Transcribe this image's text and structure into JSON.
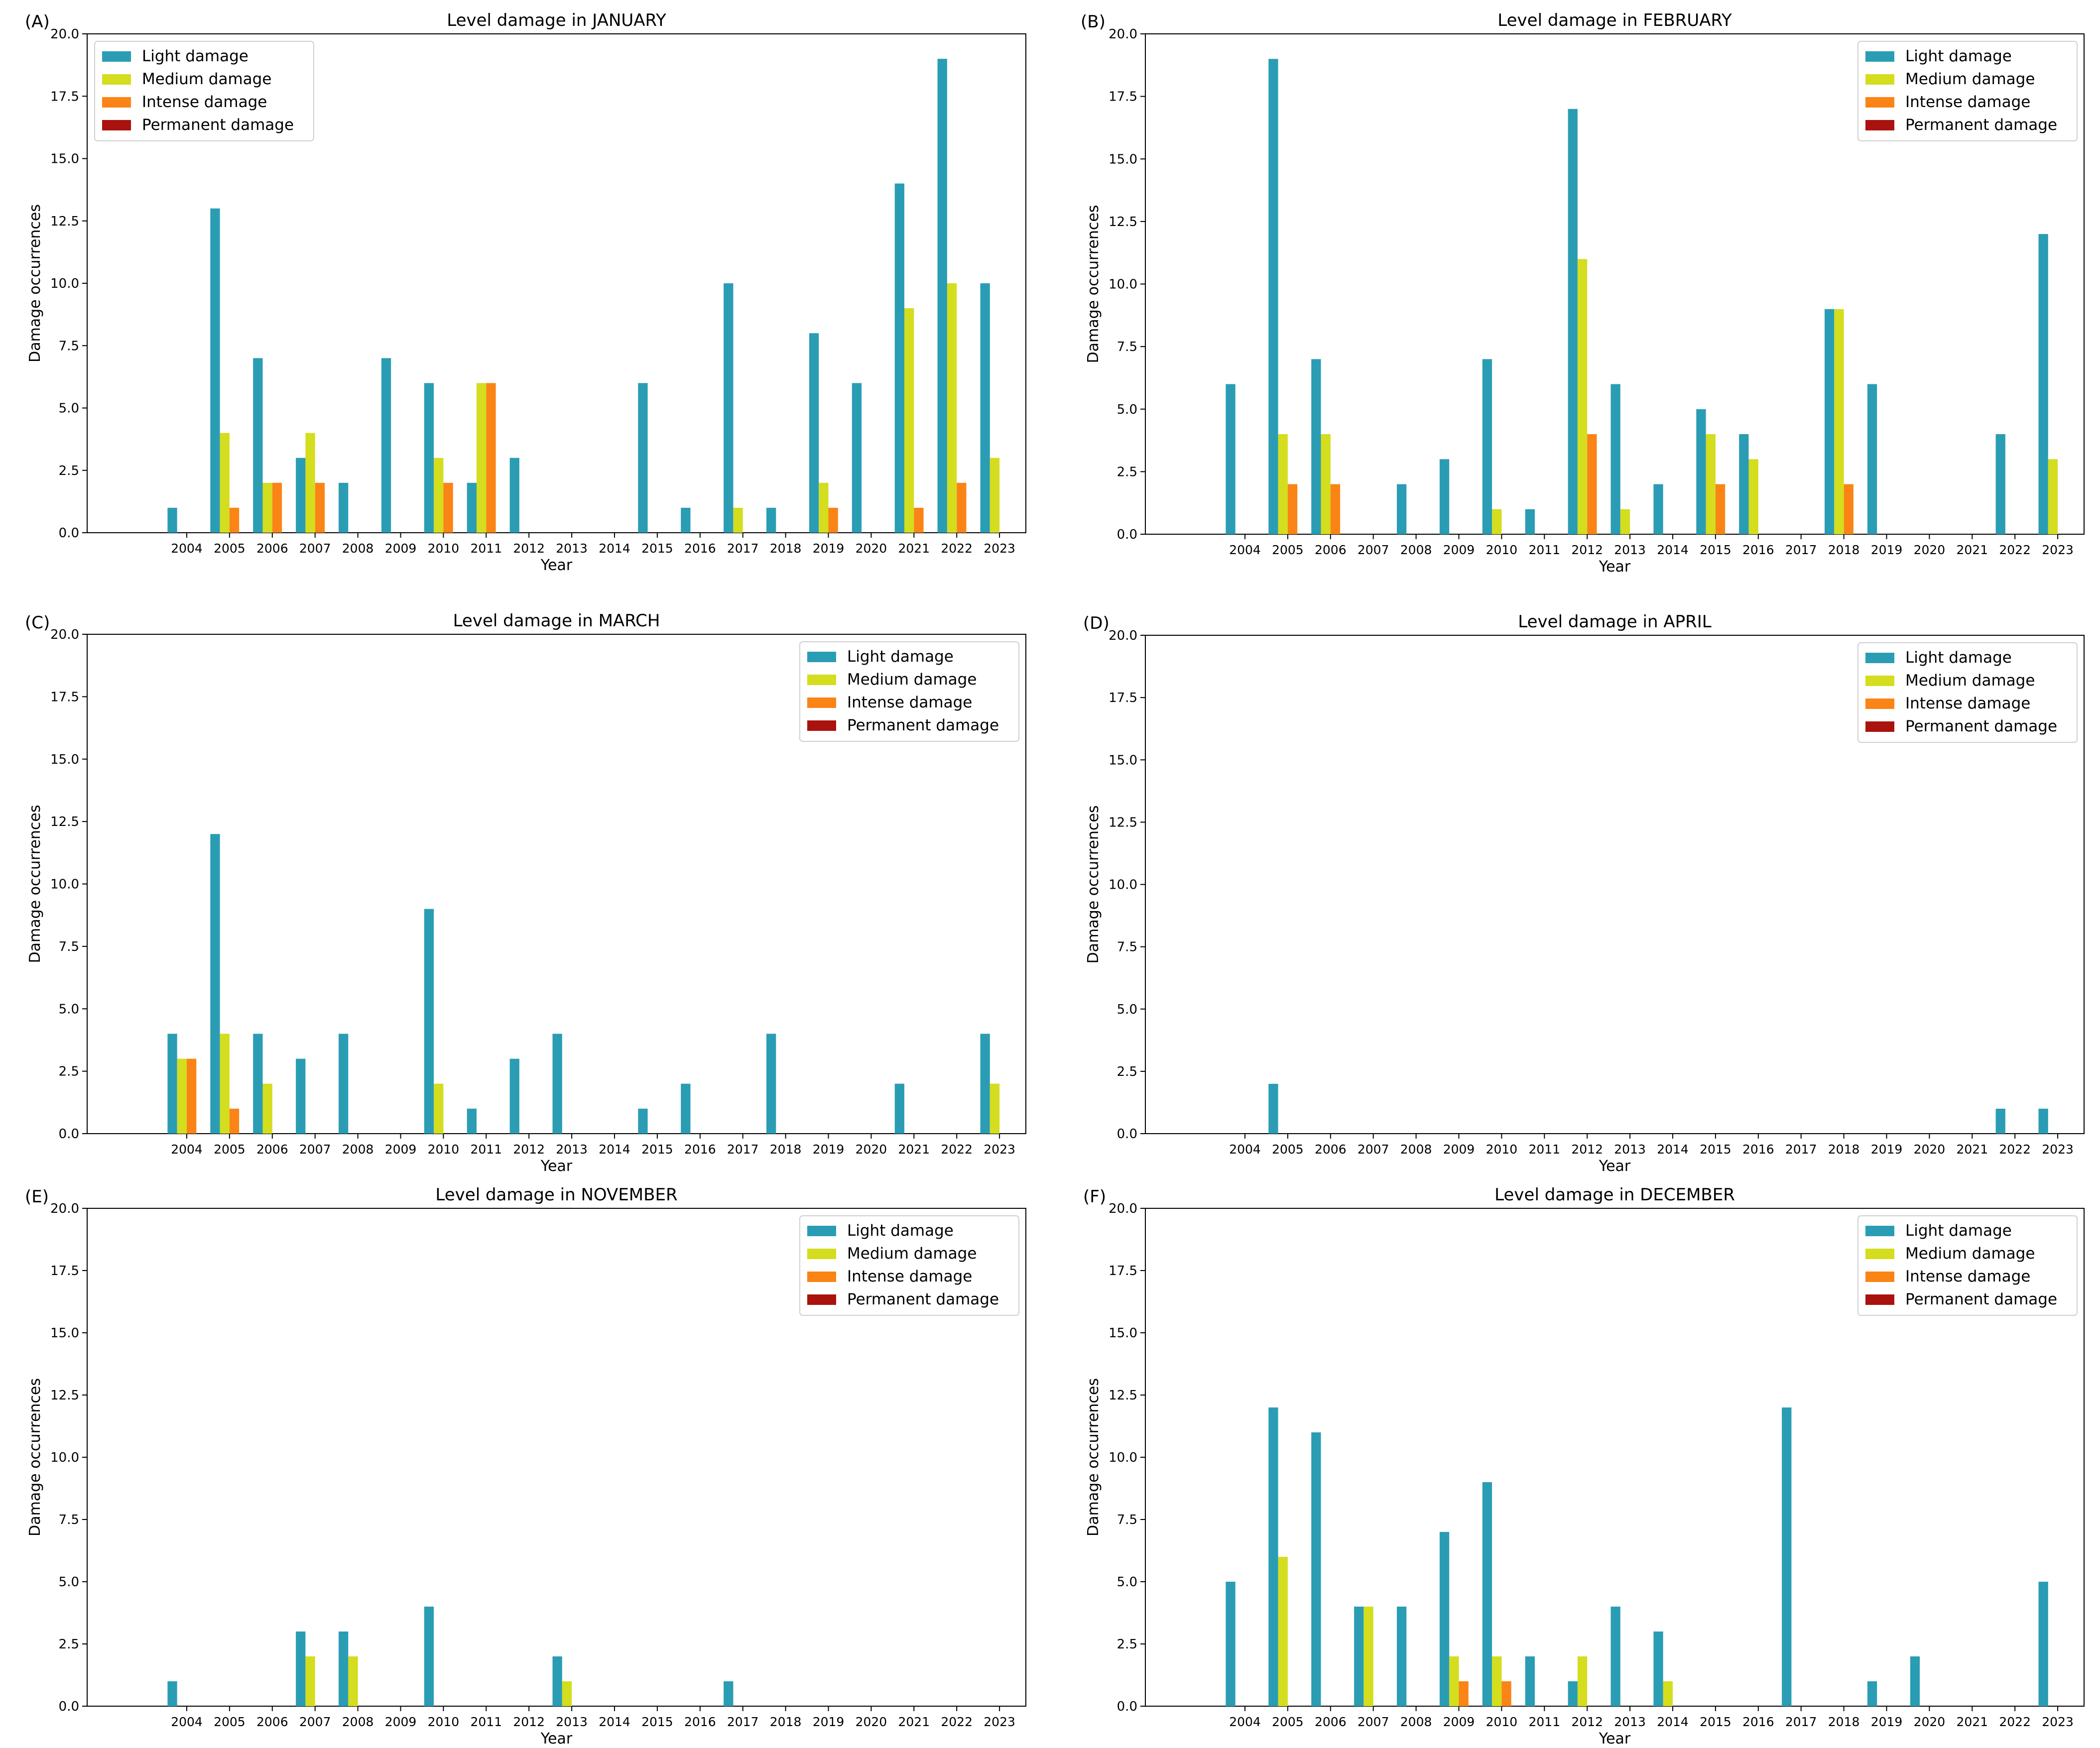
{
  "figure": {
    "years": [
      "2004",
      "2005",
      "2006",
      "2007",
      "2008",
      "2009",
      "2010",
      "2011",
      "2012",
      "2013",
      "2014",
      "2015",
      "2016",
      "2017",
      "2018",
      "2019",
      "2020",
      "2021",
      "2022",
      "2023"
    ],
    "legend_labels": [
      "Light damage",
      "Medium damage",
      "Intense damage",
      "Permanent damage"
    ],
    "colors": {
      "light": "#2a9db4",
      "medium": "#d4dd1e",
      "intense": "#fa8416",
      "permanent": "#aa120d"
    }
  },
  "chart_data": [
    {
      "type": "bar",
      "panel_label": "(A)",
      "title": "Level damage in JANUARY",
      "xlabel": "Year",
      "ylabel": "Damage occurrences",
      "ylim": [
        0,
        20
      ],
      "yticks": [
        "0.0",
        "2.5",
        "5.0",
        "7.5",
        "10.0",
        "12.5",
        "15.0",
        "17.5",
        "20.0"
      ],
      "legend_position": "top-left",
      "categories": [
        "2004",
        "2005",
        "2006",
        "2007",
        "2008",
        "2009",
        "2010",
        "2011",
        "2012",
        "2013",
        "2014",
        "2015",
        "2016",
        "2017",
        "2018",
        "2019",
        "2020",
        "2021",
        "2022",
        "2023"
      ],
      "series": [
        {
          "name": "Light damage",
          "values": [
            1,
            13,
            7,
            3,
            2,
            7,
            6,
            2,
            3,
            0,
            0,
            6,
            1,
            10,
            1,
            8,
            6,
            14,
            19,
            10
          ]
        },
        {
          "name": "Medium damage",
          "values": [
            0,
            4,
            2,
            4,
            0,
            0,
            3,
            6,
            0,
            0,
            0,
            0,
            0,
            1,
            0,
            2,
            0,
            9,
            10,
            3
          ]
        },
        {
          "name": "Intense damage",
          "values": [
            0,
            1,
            2,
            2,
            0,
            0,
            2,
            6,
            0,
            0,
            0,
            0,
            0,
            0,
            0,
            1,
            0,
            1,
            2,
            0
          ]
        },
        {
          "name": "Permanent damage",
          "values": [
            0,
            0,
            0,
            0,
            0,
            0,
            0,
            0,
            0,
            0,
            0,
            0,
            0,
            0,
            0,
            0,
            0,
            0,
            0,
            0
          ]
        }
      ]
    },
    {
      "type": "bar",
      "panel_label": "(B)",
      "title": "Level damage in FEBRUARY",
      "xlabel": "Year",
      "ylabel": "Damage occurrences",
      "ylim": [
        0,
        20
      ],
      "yticks": [
        "0.0",
        "2.5",
        "5.0",
        "7.5",
        "10.0",
        "12.5",
        "15.0",
        "17.5",
        "20.0"
      ],
      "legend_position": "top-right",
      "categories": [
        "2004",
        "2005",
        "2006",
        "2007",
        "2008",
        "2009",
        "2010",
        "2011",
        "2012",
        "2013",
        "2014",
        "2015",
        "2016",
        "2017",
        "2018",
        "2019",
        "2020",
        "2021",
        "2022",
        "2023"
      ],
      "series": [
        {
          "name": "Light damage",
          "values": [
            6,
            19,
            7,
            0,
            2,
            3,
            7,
            1,
            17,
            6,
            2,
            5,
            4,
            0,
            9,
            6,
            0,
            0,
            4,
            12
          ]
        },
        {
          "name": "Medium damage",
          "values": [
            0,
            4,
            4,
            0,
            0,
            0,
            1,
            0,
            11,
            1,
            0,
            4,
            3,
            0,
            9,
            0,
            0,
            0,
            0,
            3
          ]
        },
        {
          "name": "Intense damage",
          "values": [
            0,
            2,
            2,
            0,
            0,
            0,
            0,
            0,
            4,
            0,
            0,
            2,
            0,
            0,
            2,
            0,
            0,
            0,
            0,
            0
          ]
        },
        {
          "name": "Permanent damage",
          "values": [
            0,
            0,
            0,
            0,
            0,
            0,
            0,
            0,
            0,
            0,
            0,
            0,
            0,
            0,
            0,
            0,
            0,
            0,
            0,
            0
          ]
        }
      ]
    },
    {
      "type": "bar",
      "panel_label": "(C)",
      "title": "Level damage in MARCH",
      "xlabel": "Year",
      "ylabel": "Damage occurrences",
      "ylim": [
        0,
        20
      ],
      "yticks": [
        "0.0",
        "2.5",
        "5.0",
        "7.5",
        "10.0",
        "12.5",
        "15.0",
        "17.5",
        "20.0"
      ],
      "legend_position": "top-right",
      "categories": [
        "2004",
        "2005",
        "2006",
        "2007",
        "2008",
        "2009",
        "2010",
        "2011",
        "2012",
        "2013",
        "2014",
        "2015",
        "2016",
        "2017",
        "2018",
        "2019",
        "2020",
        "2021",
        "2022",
        "2023"
      ],
      "series": [
        {
          "name": "Light damage",
          "values": [
            4,
            12,
            4,
            3,
            4,
            0,
            9,
            1,
            3,
            4,
            0,
            1,
            2,
            0,
            4,
            0,
            0,
            2,
            0,
            4
          ]
        },
        {
          "name": "Medium damage",
          "values": [
            3,
            4,
            2,
            0,
            0,
            0,
            2,
            0,
            0,
            0,
            0,
            0,
            0,
            0,
            0,
            0,
            0,
            0,
            0,
            2
          ]
        },
        {
          "name": "Intense damage",
          "values": [
            3,
            1,
            0,
            0,
            0,
            0,
            0,
            0,
            0,
            0,
            0,
            0,
            0,
            0,
            0,
            0,
            0,
            0,
            0,
            0
          ]
        },
        {
          "name": "Permanent damage",
          "values": [
            0,
            0,
            0,
            0,
            0,
            0,
            0,
            0,
            0,
            0,
            0,
            0,
            0,
            0,
            0,
            0,
            0,
            0,
            0,
            0
          ]
        }
      ]
    },
    {
      "type": "bar",
      "panel_label": "(D)",
      "title": "Level damage in APRIL",
      "xlabel": "Year",
      "ylabel": "Damage occurrences",
      "ylim": [
        0,
        20
      ],
      "yticks": [
        "0.0",
        "2.5",
        "5.0",
        "7.5",
        "10.0",
        "12.5",
        "15.0",
        "17.5",
        "20.0"
      ],
      "legend_position": "top-right",
      "categories": [
        "2004",
        "2005",
        "2006",
        "2007",
        "2008",
        "2009",
        "2010",
        "2011",
        "2012",
        "2013",
        "2014",
        "2015",
        "2016",
        "2017",
        "2018",
        "2019",
        "2020",
        "2021",
        "2022",
        "2023"
      ],
      "series": [
        {
          "name": "Light damage",
          "values": [
            0,
            2,
            0,
            0,
            0,
            0,
            0,
            0,
            0,
            0,
            0,
            0,
            0,
            0,
            0,
            0,
            0,
            0,
            1,
            1
          ]
        },
        {
          "name": "Medium damage",
          "values": [
            0,
            0,
            0,
            0,
            0,
            0,
            0,
            0,
            0,
            0,
            0,
            0,
            0,
            0,
            0,
            0,
            0,
            0,
            0,
            0
          ]
        },
        {
          "name": "Intense damage",
          "values": [
            0,
            0,
            0,
            0,
            0,
            0,
            0,
            0,
            0,
            0,
            0,
            0,
            0,
            0,
            0,
            0,
            0,
            0,
            0,
            0
          ]
        },
        {
          "name": "Permanent damage",
          "values": [
            0,
            0,
            0,
            0,
            0,
            0,
            0,
            0,
            0,
            0,
            0,
            0,
            0,
            0,
            0,
            0,
            0,
            0,
            0,
            0
          ]
        }
      ]
    },
    {
      "type": "bar",
      "panel_label": "(E)",
      "title": "Level damage in NOVEMBER",
      "xlabel": "Year",
      "ylabel": "Damage occurrences",
      "ylim": [
        0,
        20
      ],
      "yticks": [
        "0.0",
        "2.5",
        "5.0",
        "7.5",
        "10.0",
        "12.5",
        "15.0",
        "17.5",
        "20.0"
      ],
      "legend_position": "top-right",
      "categories": [
        "2004",
        "2005",
        "2006",
        "2007",
        "2008",
        "2009",
        "2010",
        "2011",
        "2012",
        "2013",
        "2014",
        "2015",
        "2016",
        "2017",
        "2018",
        "2019",
        "2020",
        "2021",
        "2022",
        "2023"
      ],
      "series": [
        {
          "name": "Light damage",
          "values": [
            1,
            0,
            0,
            3,
            3,
            0,
            4,
            0,
            0,
            2,
            0,
            0,
            0,
            1,
            0,
            0,
            0,
            0,
            0,
            0
          ]
        },
        {
          "name": "Medium damage",
          "values": [
            0,
            0,
            0,
            2,
            2,
            0,
            0,
            0,
            0,
            1,
            0,
            0,
            0,
            0,
            0,
            0,
            0,
            0,
            0,
            0
          ]
        },
        {
          "name": "Intense damage",
          "values": [
            0,
            0,
            0,
            0,
            0,
            0,
            0,
            0,
            0,
            0,
            0,
            0,
            0,
            0,
            0,
            0,
            0,
            0,
            0,
            0
          ]
        },
        {
          "name": "Permanent damage",
          "values": [
            0,
            0,
            0,
            0,
            0,
            0,
            0,
            0,
            0,
            0,
            0,
            0,
            0,
            0,
            0,
            0,
            0,
            0,
            0,
            0
          ]
        }
      ]
    },
    {
      "type": "bar",
      "panel_label": "(F)",
      "title": "Level damage in DECEMBER",
      "xlabel": "Year",
      "ylabel": "Damage occurrences",
      "ylim": [
        0,
        20
      ],
      "yticks": [
        "0.0",
        "2.5",
        "5.0",
        "7.5",
        "10.0",
        "12.5",
        "15.0",
        "17.5",
        "20.0"
      ],
      "legend_position": "top-right",
      "categories": [
        "2004",
        "2005",
        "2006",
        "2007",
        "2008",
        "2009",
        "2010",
        "2011",
        "2012",
        "2013",
        "2014",
        "2015",
        "2016",
        "2017",
        "2018",
        "2019",
        "2020",
        "2021",
        "2022",
        "2023"
      ],
      "series": [
        {
          "name": "Light damage",
          "values": [
            5,
            12,
            11,
            4,
            4,
            7,
            9,
            2,
            1,
            4,
            3,
            0,
            0,
            12,
            0,
            1,
            2,
            0,
            0,
            5
          ]
        },
        {
          "name": "Medium damage",
          "values": [
            0,
            6,
            0,
            4,
            0,
            2,
            2,
            0,
            2,
            0,
            1,
            0,
            0,
            0,
            0,
            0,
            0,
            0,
            0,
            0
          ]
        },
        {
          "name": "Intense damage",
          "values": [
            0,
            0,
            0,
            0,
            0,
            1,
            1,
            0,
            0,
            0,
            0,
            0,
            0,
            0,
            0,
            0,
            0,
            0,
            0,
            0
          ]
        },
        {
          "name": "Permanent damage",
          "values": [
            0,
            0,
            0,
            0,
            0,
            0,
            0,
            0,
            0,
            0,
            0,
            0,
            0,
            0,
            0,
            0,
            0,
            0,
            0,
            0
          ]
        }
      ]
    }
  ]
}
